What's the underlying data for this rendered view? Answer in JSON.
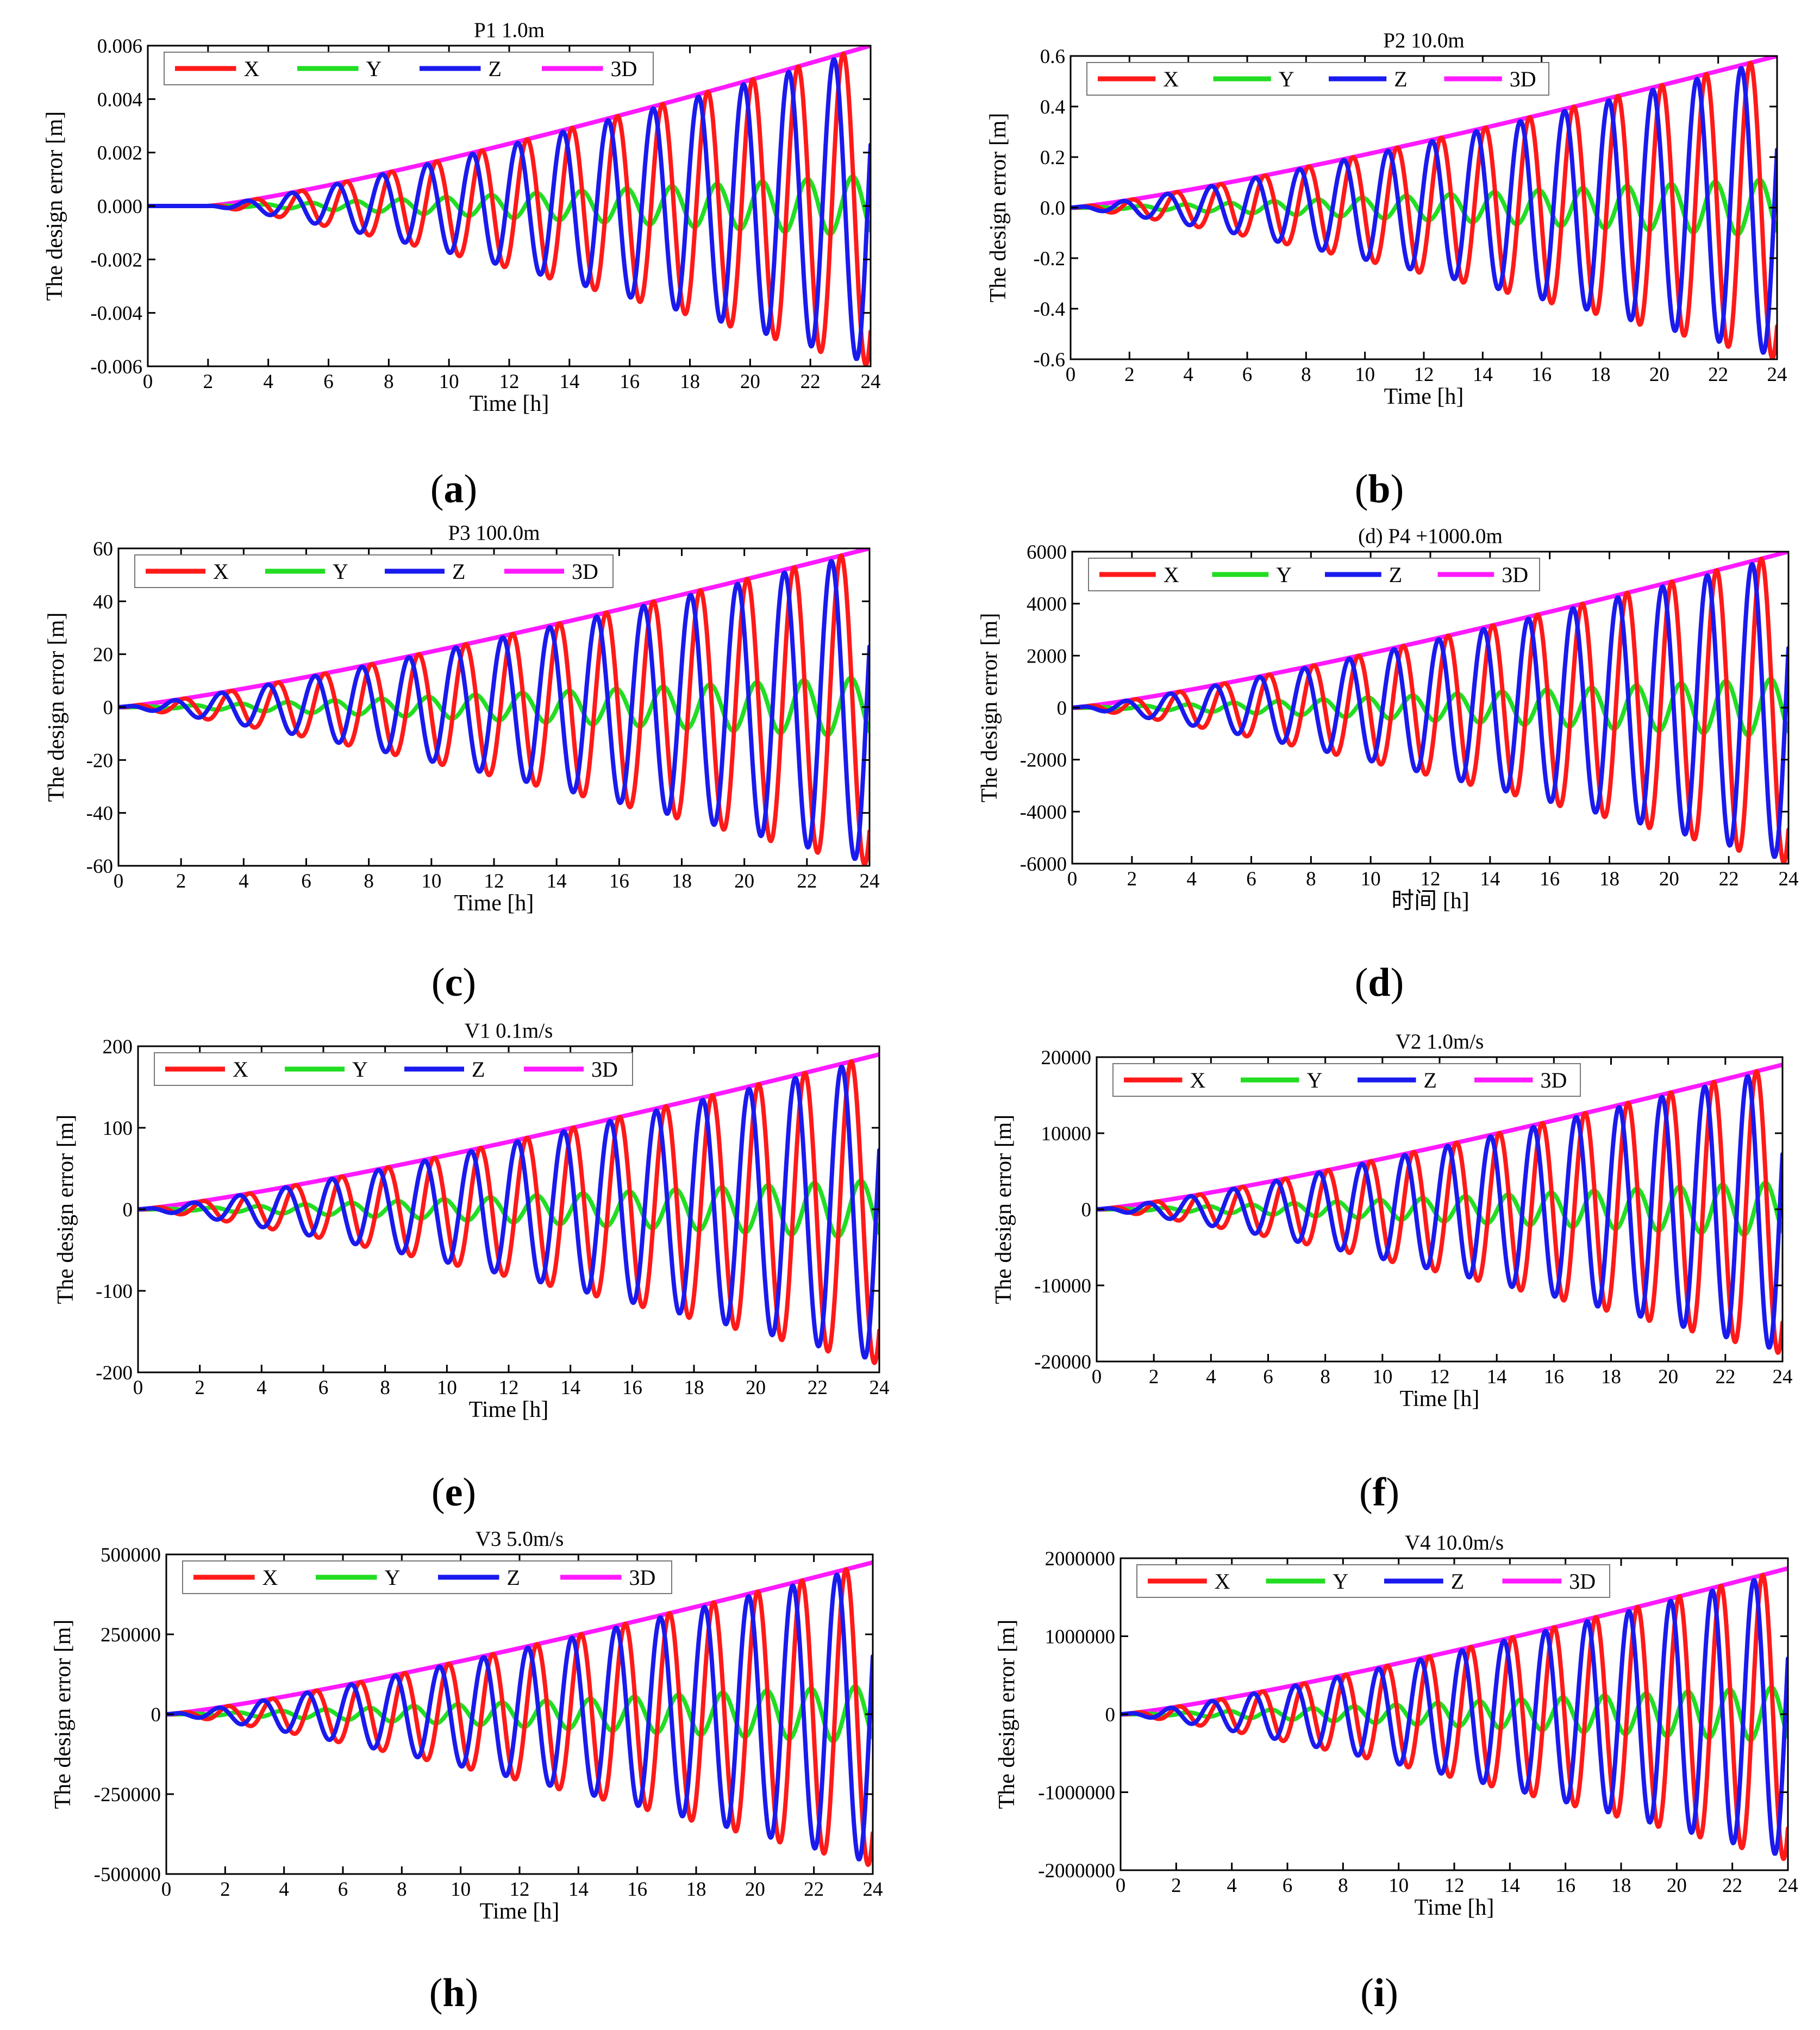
{
  "chart_data": [
    {
      "id": "a",
      "type": "line",
      "title": "P1 1.0m",
      "xlabel": "Time [h]",
      "ylabel": "The design error [m]",
      "xlim": [
        0,
        24
      ],
      "ylim": [
        -0.006,
        0.006
      ],
      "xticks": [
        "0",
        "2",
        "4",
        "6",
        "8",
        "10",
        "12",
        "14",
        "16",
        "18",
        "20",
        "22",
        "24"
      ],
      "yticks": [
        "-0.006",
        "-0.004",
        "-0.002",
        "0.000",
        "0.002",
        "0.004",
        "0.006"
      ],
      "start_time_h": 2,
      "peak_3d": 0.006,
      "series": [
        {
          "name": "X",
          "color": "#ff1a1a"
        },
        {
          "name": "Y",
          "color": "#22dd22"
        },
        {
          "name": "Z",
          "color": "#1a1aee"
        },
        {
          "name": "3D",
          "color": "#ff1aff"
        }
      ],
      "caption": "a"
    },
    {
      "id": "b",
      "type": "line",
      "title": "P2 10.0m",
      "xlabel": "Time [h]",
      "ylabel": "The design error [m]",
      "xlim": [
        0,
        24
      ],
      "ylim": [
        -0.6,
        0.6
      ],
      "xticks": [
        "0",
        "2",
        "4",
        "6",
        "8",
        "10",
        "12",
        "14",
        "16",
        "18",
        "20",
        "22",
        "24"
      ],
      "yticks": [
        "-0.6",
        "-0.4",
        "-0.2",
        "0.0",
        "0.2",
        "0.4",
        "0.6"
      ],
      "start_time_h": 0,
      "peak_3d": 0.6,
      "series": [
        {
          "name": "X",
          "color": "#ff1a1a"
        },
        {
          "name": "Y",
          "color": "#22dd22"
        },
        {
          "name": "Z",
          "color": "#1a1aee"
        },
        {
          "name": "3D",
          "color": "#ff1aff"
        }
      ],
      "caption": "b"
    },
    {
      "id": "c",
      "type": "line",
      "title": "P3 100.0m",
      "xlabel": "Time [h]",
      "ylabel": "The design error [m]",
      "xlim": [
        0,
        24
      ],
      "ylim": [
        -60,
        60
      ],
      "xticks": [
        "0",
        "2",
        "4",
        "6",
        "8",
        "10",
        "12",
        "14",
        "16",
        "18",
        "20",
        "22",
        "24"
      ],
      "yticks": [
        "-60",
        "-40",
        "-20",
        "0",
        "20",
        "40",
        "60"
      ],
      "start_time_h": 0,
      "peak_3d": 60,
      "series": [
        {
          "name": "X",
          "color": "#ff1a1a"
        },
        {
          "name": "Y",
          "color": "#22dd22"
        },
        {
          "name": "Z",
          "color": "#1a1aee"
        },
        {
          "name": "3D",
          "color": "#ff1aff"
        }
      ],
      "caption": "c"
    },
    {
      "id": "d",
      "type": "line",
      "title": "(d) P4 +1000.0m",
      "xlabel": "时间 [h]",
      "ylabel": "The design error [m]",
      "xlim": [
        0,
        24
      ],
      "ylim": [
        -6000,
        6000
      ],
      "xticks": [
        "0",
        "2",
        "4",
        "6",
        "8",
        "10",
        "12",
        "14",
        "16",
        "18",
        "20",
        "22",
        "24"
      ],
      "yticks": [
        "-6000",
        "-4000",
        "-2000",
        "0",
        "2000",
        "4000",
        "6000"
      ],
      "start_time_h": 0,
      "peak_3d": 6000,
      "series": [
        {
          "name": "X",
          "color": "#ff1a1a"
        },
        {
          "name": "Y",
          "color": "#22dd22"
        },
        {
          "name": "Z",
          "color": "#1a1aee"
        },
        {
          "name": "3D",
          "color": "#ff1aff"
        }
      ],
      "caption": "d"
    },
    {
      "id": "e",
      "type": "line",
      "title": "V1 0.1m/s",
      "xlabel": "Time [h]",
      "ylabel": "The design error [m]",
      "xlim": [
        0,
        24
      ],
      "ylim": [
        -200,
        200
      ],
      "xticks": [
        "0",
        "2",
        "4",
        "6",
        "8",
        "10",
        "12",
        "14",
        "16",
        "18",
        "20",
        "22",
        "24"
      ],
      "yticks": [
        "-200",
        "-100",
        "0",
        "100",
        "200"
      ],
      "start_time_h": 0,
      "peak_3d": 190,
      "series": [
        {
          "name": "X",
          "color": "#ff1a1a"
        },
        {
          "name": "Y",
          "color": "#22dd22"
        },
        {
          "name": "Z",
          "color": "#1a1aee"
        },
        {
          "name": "3D",
          "color": "#ff1aff"
        }
      ],
      "caption": "e"
    },
    {
      "id": "f",
      "type": "line",
      "title": "V2 1.0m/s",
      "xlabel": "Time [h]",
      "ylabel": "The design error [m]",
      "xlim": [
        0,
        24
      ],
      "ylim": [
        -20000,
        20000
      ],
      "xticks": [
        "0",
        "2",
        "4",
        "6",
        "8",
        "10",
        "12",
        "14",
        "16",
        "18",
        "20",
        "22",
        "24"
      ],
      "yticks": [
        "-20000",
        "-10000",
        "0",
        "10000",
        "20000"
      ],
      "start_time_h": 0,
      "peak_3d": 19000,
      "series": [
        {
          "name": "X",
          "color": "#ff1a1a"
        },
        {
          "name": "Y",
          "color": "#22dd22"
        },
        {
          "name": "Z",
          "color": "#1a1aee"
        },
        {
          "name": "3D",
          "color": "#ff1aff"
        }
      ],
      "caption": "f"
    },
    {
      "id": "h",
      "type": "line",
      "title": "V3 5.0m/s",
      "xlabel": "Time [h]",
      "ylabel": "The design error [m]",
      "xlim": [
        0,
        24
      ],
      "ylim": [
        -500000,
        500000
      ],
      "xticks": [
        "0",
        "2",
        "4",
        "6",
        "8",
        "10",
        "12",
        "14",
        "16",
        "18",
        "20",
        "22",
        "24"
      ],
      "yticks": [
        "-500000",
        "-250000",
        "0",
        "250000",
        "500000"
      ],
      "start_time_h": 0,
      "peak_3d": 475000,
      "series": [
        {
          "name": "X",
          "color": "#ff1a1a"
        },
        {
          "name": "Y",
          "color": "#22dd22"
        },
        {
          "name": "Z",
          "color": "#1a1aee"
        },
        {
          "name": "3D",
          "color": "#ff1aff"
        }
      ],
      "caption": "h"
    },
    {
      "id": "i",
      "type": "line",
      "title": "V4 10.0m/s",
      "xlabel": "Time [h]",
      "ylabel": "The design error [m]",
      "xlim": [
        0,
        24
      ],
      "ylim": [
        -2000000,
        2000000
      ],
      "xticks": [
        "0",
        "2",
        "4",
        "6",
        "8",
        "10",
        "12",
        "14",
        "16",
        "18",
        "20",
        "22",
        "24"
      ],
      "yticks": [
        "-2000000",
        "-1000000",
        "0",
        "1000000",
        "2000000"
      ],
      "start_time_h": 0,
      "peak_3d": 1870000,
      "series": [
        {
          "name": "X",
          "color": "#ff1a1a"
        },
        {
          "name": "Y",
          "color": "#22dd22"
        },
        {
          "name": "Z",
          "color": "#1a1aee"
        },
        {
          "name": "3D",
          "color": "#ff1aff"
        }
      ],
      "caption": "i"
    }
  ]
}
